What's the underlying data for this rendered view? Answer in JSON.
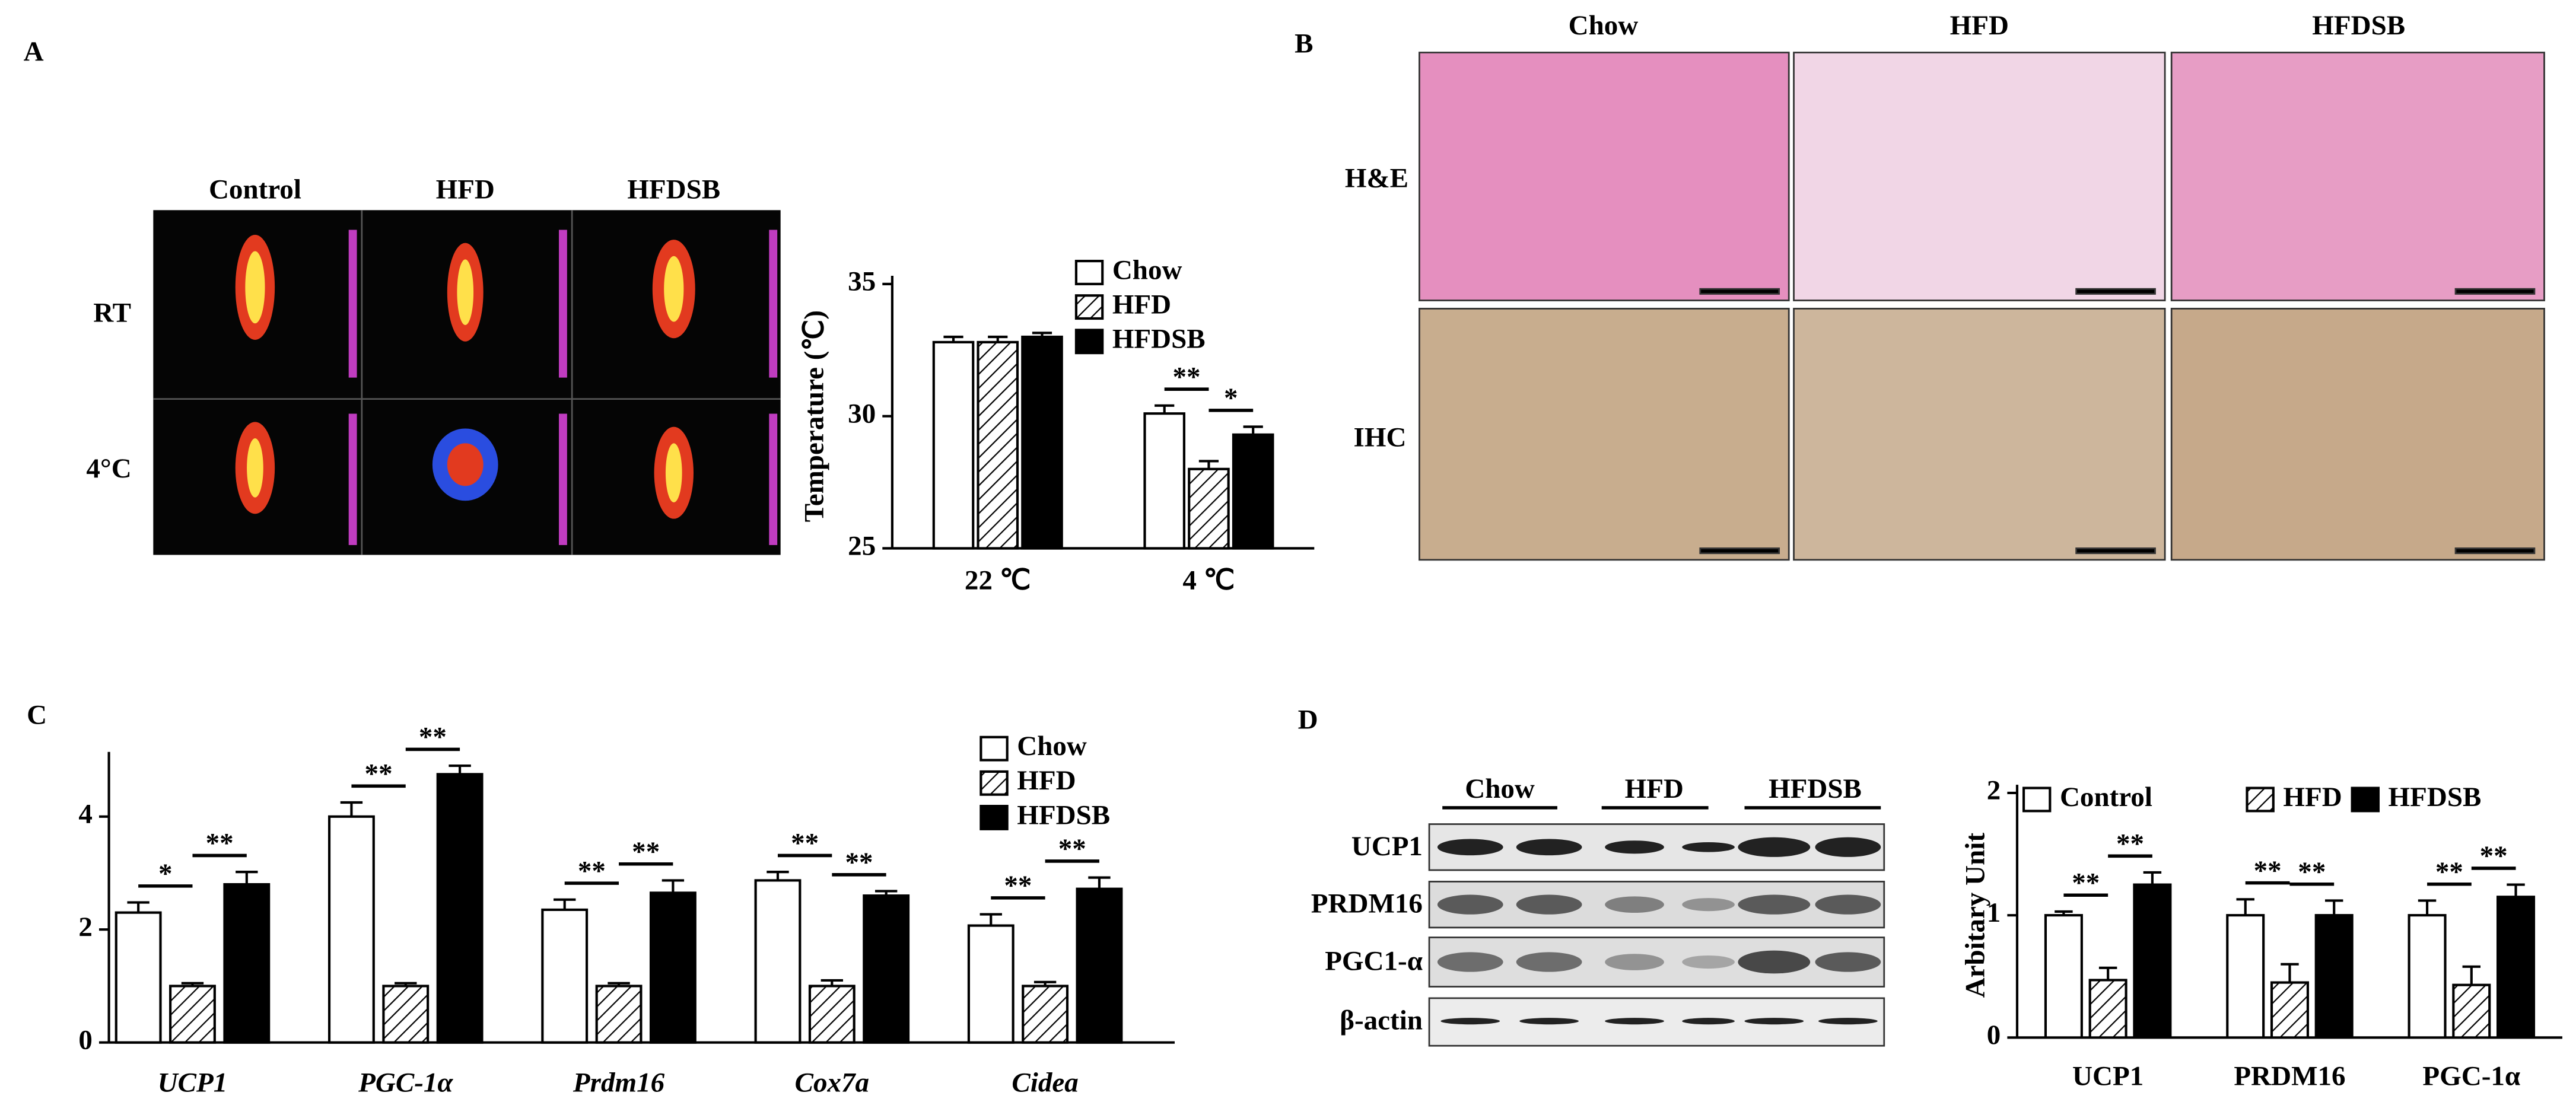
{
  "panels": {
    "letters": [
      "A",
      "B",
      "C",
      "D"
    ],
    "thermal": {
      "columns": [
        "Control",
        "HFD",
        "HFDSB"
      ],
      "rows": [
        "RT",
        "4°C"
      ]
    },
    "histology": {
      "columns": [
        "Chow",
        "HFD",
        "HFDSB"
      ],
      "rows": [
        "H&E",
        "IHC"
      ]
    },
    "blot": {
      "columns": [
        "Chow",
        "HFD",
        "HFDSB"
      ],
      "rows": [
        "UCP1",
        "PRDM16",
        "PGC1-α",
        "β-actin"
      ]
    }
  },
  "chart_data": [
    {
      "type": "bar",
      "y_label": "Temperature (℃)",
      "categories": [
        "22 ℃",
        "4 ℃"
      ],
      "series": [
        {
          "name": "Chow",
          "color": "#ffffff",
          "values": [
            32.8,
            30.1
          ],
          "errors": [
            0.2,
            0.3
          ]
        },
        {
          "name": "HFD",
          "color": "#ffffff",
          "hatch": true,
          "values": [
            32.8,
            28.0
          ],
          "errors": [
            0.2,
            0.3
          ]
        },
        {
          "name": "HFDSB",
          "color": "#000000",
          "values": [
            33.0,
            29.3
          ],
          "errors": [
            0.15,
            0.3
          ]
        }
      ],
      "ylim": [
        25,
        35
      ],
      "yticks": [
        25,
        30,
        35
      ],
      "legend": "upper right",
      "significance": [
        {
          "category": "4 ℃",
          "series": [
            "Chow",
            "HFD"
          ],
          "label": "**"
        },
        {
          "category": "4 ℃",
          "series": [
            "HFD",
            "HFDSB"
          ],
          "label": "*"
        }
      ]
    },
    {
      "type": "bar",
      "categories": [
        "UCP1",
        "PGC-1α",
        "Prdm16",
        "Cox7a",
        "Cidea"
      ],
      "series": [
        {
          "name": "Chow",
          "color": "#ffffff",
          "values": [
            2.3,
            4.0,
            2.35,
            2.87,
            2.07
          ],
          "errors": [
            0.18,
            0.25,
            0.18,
            0.15,
            0.2
          ]
        },
        {
          "name": "HFD",
          "color": "#ffffff",
          "hatch": true,
          "values": [
            1,
            1,
            1,
            1,
            1
          ],
          "errors": [
            0.05,
            0.05,
            0.05,
            0.1,
            0.07
          ]
        },
        {
          "name": "HFDSB",
          "color": "#000000",
          "values": [
            2.8,
            4.75,
            2.65,
            2.6,
            2.72
          ],
          "errors": [
            0.22,
            0.15,
            0.22,
            0.08,
            0.2
          ]
        }
      ],
      "ylim": [
        0,
        5
      ],
      "yticks": [
        0,
        2,
        4
      ],
      "legend": "upper right",
      "significance": [
        {
          "category": "UCP1",
          "series": [
            "Chow",
            "HFD"
          ],
          "label": "*"
        },
        {
          "category": "UCP1",
          "series": [
            "HFD",
            "HFDSB"
          ],
          "label": "**"
        },
        {
          "category": "PGC-1α",
          "series": [
            "Chow",
            "HFD"
          ],
          "label": "**"
        },
        {
          "category": "PGC-1α",
          "series": [
            "HFD",
            "HFDSB"
          ],
          "label": "**"
        },
        {
          "category": "Prdm16",
          "series": [
            "Chow",
            "HFD"
          ],
          "label": "**"
        },
        {
          "category": "Prdm16",
          "series": [
            "HFD",
            "HFDSB"
          ],
          "label": "**"
        },
        {
          "category": "Cox7a",
          "series": [
            "Chow",
            "HFD"
          ],
          "label": "**"
        },
        {
          "category": "Cox7a",
          "series": [
            "HFD",
            "HFDSB"
          ],
          "label": "**"
        },
        {
          "category": "Cidea",
          "series": [
            "Chow",
            "HFD"
          ],
          "label": "**"
        },
        {
          "category": "Cidea",
          "series": [
            "HFD",
            "HFDSB"
          ],
          "label": "**"
        }
      ]
    },
    {
      "type": "bar",
      "y_label": "Arbitary Unit",
      "categories": [
        "UCP1",
        "PRDM16",
        "PGC-1α"
      ],
      "series": [
        {
          "name": "Control",
          "color": "#ffffff",
          "values": [
            1.0,
            1.0,
            1.0
          ],
          "errors": [
            0.03,
            0.13,
            0.12
          ]
        },
        {
          "name": "HFD",
          "color": "#ffffff",
          "hatch": true,
          "values": [
            0.47,
            0.45,
            0.43
          ],
          "errors": [
            0.1,
            0.15,
            0.15
          ]
        },
        {
          "name": "HFDSB",
          "color": "#000000",
          "values": [
            1.25,
            1.0,
            1.15
          ],
          "errors": [
            0.1,
            0.12,
            0.1
          ]
        }
      ],
      "ylim": [
        0,
        2
      ],
      "yticks": [
        0,
        1,
        2
      ],
      "legend": "upper center",
      "significance": [
        {
          "category": "UCP1",
          "series": [
            "Control",
            "HFD"
          ],
          "label": "**"
        },
        {
          "category": "UCP1",
          "series": [
            "HFD",
            "HFDSB"
          ],
          "label": "**"
        },
        {
          "category": "PRDM16",
          "series": [
            "Control",
            "HFD"
          ],
          "label": "**"
        },
        {
          "category": "PRDM16",
          "series": [
            "HFD",
            "HFDSB"
          ],
          "label": "**"
        },
        {
          "category": "PGC-1α",
          "series": [
            "Control",
            "HFD"
          ],
          "label": "**"
        },
        {
          "category": "PGC-1α",
          "series": [
            "HFD",
            "HFDSB"
          ],
          "label": "**"
        }
      ]
    }
  ]
}
